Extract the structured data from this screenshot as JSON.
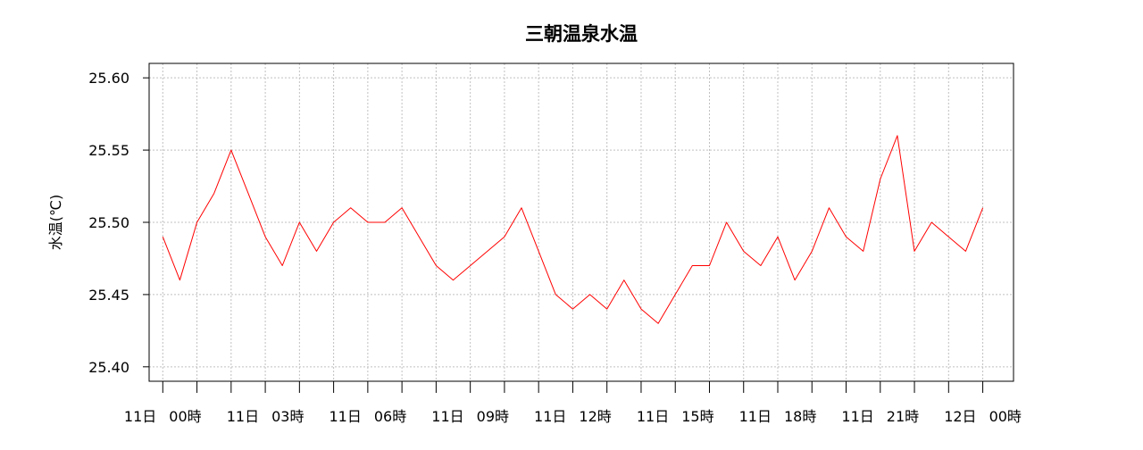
{
  "chart_data": {
    "type": "line",
    "title": "三朝温泉水温",
    "ylabel": "水温(℃)",
    "xlabel": "",
    "ylim": [
      25.39,
      25.61
    ],
    "xlim": [
      -0.4,
      24.9
    ],
    "y_ticks": [
      25.4,
      25.45,
      25.5,
      25.55,
      25.6
    ],
    "y_tick_labels": [
      "25.40",
      "25.45",
      "25.50",
      "25.55",
      "25.60"
    ],
    "x_major_ticks": [
      0,
      3,
      6,
      9,
      12,
      15,
      18,
      21,
      24
    ],
    "x_minor_ticks": [
      1,
      2,
      4,
      5,
      7,
      8,
      10,
      11,
      13,
      14,
      16,
      17,
      19,
      20,
      22,
      23
    ],
    "x_tick_labels": [
      {
        "day": "11日",
        "time": "00時"
      },
      {
        "day": "11日",
        "time": "03時"
      },
      {
        "day": "11日",
        "time": "06時"
      },
      {
        "day": "11日",
        "time": "09時"
      },
      {
        "day": "11日",
        "time": "12時"
      },
      {
        "day": "11日",
        "time": "15時"
      },
      {
        "day": "11日",
        "time": "18時"
      },
      {
        "day": "11日",
        "time": "21時"
      },
      {
        "day": "12日",
        "time": "00時"
      }
    ],
    "x_unit": "hours from 11日 00時",
    "grid": true,
    "legend": "none",
    "series": [
      {
        "color": "#ff0000",
        "x": [
          0.0,
          0.5,
          1.0,
          1.5,
          2.0,
          2.5,
          3.0,
          3.5,
          4.0,
          4.5,
          5.0,
          5.5,
          6.0,
          6.5,
          7.0,
          7.5,
          8.0,
          8.5,
          9.0,
          9.5,
          10.0,
          10.5,
          11.0,
          11.5,
          12.0,
          12.5,
          13.0,
          13.5,
          14.0,
          14.5,
          15.0,
          15.5,
          16.0,
          16.5,
          17.0,
          17.5,
          18.0,
          18.5,
          19.0,
          19.5,
          20.0,
          20.5,
          21.0,
          21.5,
          22.0,
          22.5,
          23.0,
          23.5,
          24.0
        ],
        "values": [
          25.49,
          25.46,
          25.5,
          25.52,
          25.55,
          25.52,
          25.49,
          25.47,
          25.5,
          25.48,
          25.5,
          25.51,
          25.5,
          25.5,
          25.51,
          25.49,
          25.47,
          25.46,
          25.47,
          25.48,
          25.49,
          25.51,
          25.48,
          25.45,
          25.44,
          25.45,
          25.44,
          25.46,
          25.44,
          25.43,
          25.45,
          25.47,
          25.47,
          25.5,
          25.48,
          25.47,
          25.49,
          25.46,
          25.48,
          25.51,
          25.49,
          25.48,
          25.53,
          25.56,
          25.48,
          25.5,
          25.49,
          25.48,
          25.51
        ]
      }
    ]
  }
}
